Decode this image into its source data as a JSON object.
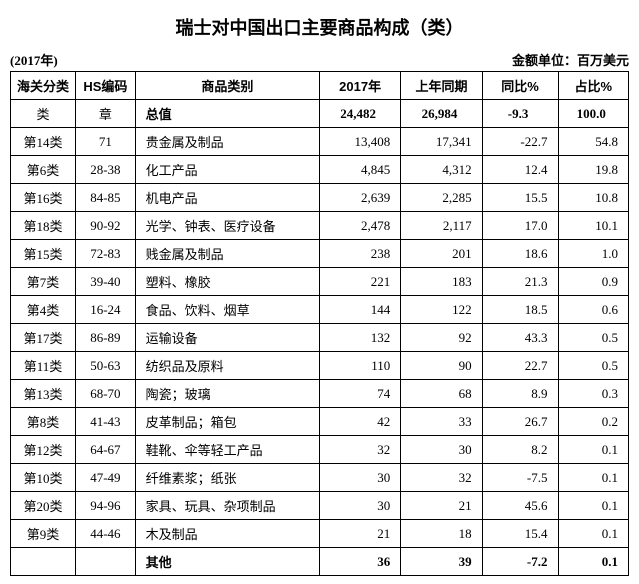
{
  "title": "瑞士对中国出口主要商品构成（类）",
  "year_label": "(2017年)",
  "unit_label": "金额单位：百万美元",
  "columns": {
    "customs": "海关分类",
    "hs": "HS编码",
    "name": "商品类别",
    "c2017": "2017年",
    "prev": "上年同期",
    "yoy": "同比%",
    "share": "占比%"
  },
  "subhead": {
    "customs": "类",
    "hs": "章"
  },
  "total_row": {
    "name": "总值",
    "c2017": "24,482",
    "prev": "26,984",
    "yoy": "-9.3",
    "share": "100.0"
  },
  "rows": [
    {
      "customs": "第14类",
      "hs": "71",
      "name": "贵金属及制品",
      "c2017": "13,408",
      "prev": "17,341",
      "yoy": "-22.7",
      "share": "54.8"
    },
    {
      "customs": "第6类",
      "hs": "28-38",
      "name": "化工产品",
      "c2017": "4,845",
      "prev": "4,312",
      "yoy": "12.4",
      "share": "19.8"
    },
    {
      "customs": "第16类",
      "hs": "84-85",
      "name": "机电产品",
      "c2017": "2,639",
      "prev": "2,285",
      "yoy": "15.5",
      "share": "10.8"
    },
    {
      "customs": "第18类",
      "hs": "90-92",
      "name": "光学、钟表、医疗设备",
      "c2017": "2,478",
      "prev": "2,117",
      "yoy": "17.0",
      "share": "10.1"
    },
    {
      "customs": "第15类",
      "hs": "72-83",
      "name": "贱金属及制品",
      "c2017": "238",
      "prev": "201",
      "yoy": "18.6",
      "share": "1.0"
    },
    {
      "customs": "第7类",
      "hs": "39-40",
      "name": "塑料、橡胶",
      "c2017": "221",
      "prev": "183",
      "yoy": "21.3",
      "share": "0.9"
    },
    {
      "customs": "第4类",
      "hs": "16-24",
      "name": "食品、饮料、烟草",
      "c2017": "144",
      "prev": "122",
      "yoy": "18.5",
      "share": "0.6"
    },
    {
      "customs": "第17类",
      "hs": "86-89",
      "name": "运输设备",
      "c2017": "132",
      "prev": "92",
      "yoy": "43.3",
      "share": "0.5"
    },
    {
      "customs": "第11类",
      "hs": "50-63",
      "name": "纺织品及原料",
      "c2017": "110",
      "prev": "90",
      "yoy": "22.7",
      "share": "0.5"
    },
    {
      "customs": "第13类",
      "hs": "68-70",
      "name": "陶瓷；玻璃",
      "c2017": "74",
      "prev": "68",
      "yoy": "8.9",
      "share": "0.3"
    },
    {
      "customs": "第8类",
      "hs": "41-43",
      "name": "皮革制品；箱包",
      "c2017": "42",
      "prev": "33",
      "yoy": "26.7",
      "share": "0.2"
    },
    {
      "customs": "第12类",
      "hs": "64-67",
      "name": "鞋靴、伞等轻工产品",
      "c2017": "32",
      "prev": "30",
      "yoy": "8.2",
      "share": "0.1"
    },
    {
      "customs": "第10类",
      "hs": "47-49",
      "name": "纤维素浆；纸张",
      "c2017": "30",
      "prev": "32",
      "yoy": "-7.5",
      "share": "0.1"
    },
    {
      "customs": "第20类",
      "hs": "94-96",
      "name": "家具、玩具、杂项制品",
      "c2017": "30",
      "prev": "21",
      "yoy": "45.6",
      "share": "0.1"
    },
    {
      "customs": "第9类",
      "hs": "44-46",
      "name": "木及制品",
      "c2017": "21",
      "prev": "18",
      "yoy": "15.4",
      "share": "0.1"
    }
  ],
  "other_row": {
    "name": "其他",
    "c2017": "36",
    "prev": "39",
    "yoy": "-7.2",
    "share": "0.1"
  },
  "style": {
    "background_color": "#ffffff",
    "border_color": "#000000",
    "text_color": "#000000",
    "title_fontsize": 18,
    "cell_fontsize": 13
  }
}
